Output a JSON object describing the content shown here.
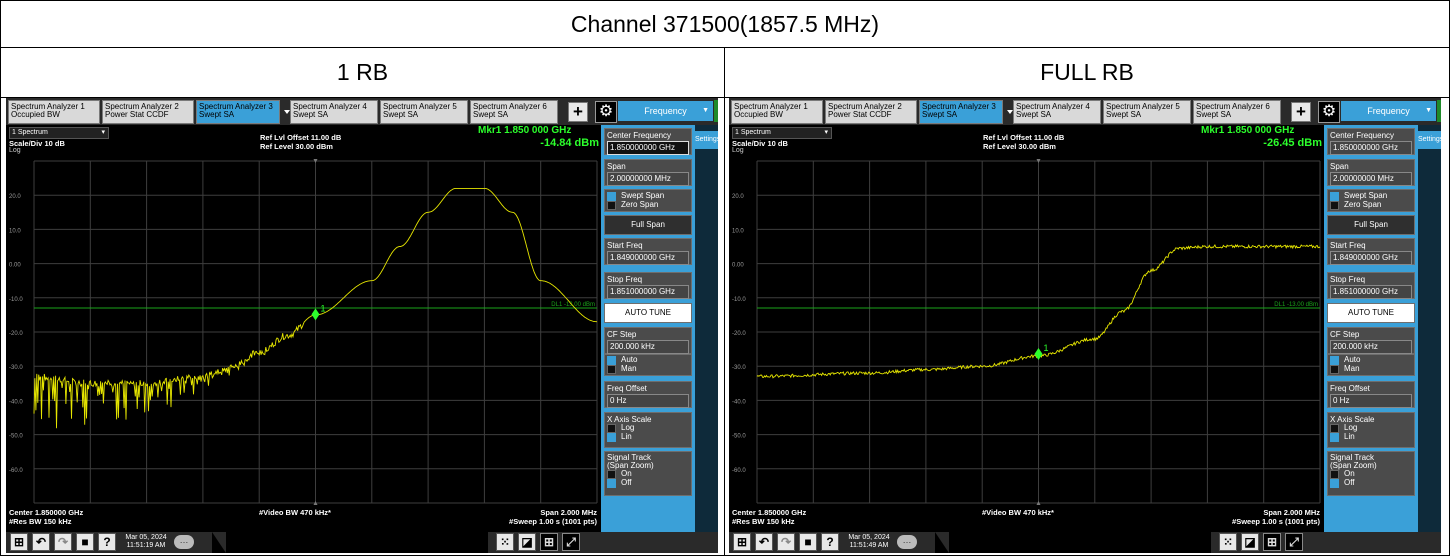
{
  "table": {
    "title": "Channel 371500(1857.5 MHz)",
    "left_header": "1 RB",
    "right_header": "FULL RB"
  },
  "ui": {
    "tabs": [
      {
        "line1": "Spectrum Analyzer 1",
        "line2": "Occupied BW"
      },
      {
        "line1": "Spectrum Analyzer 2",
        "line2": "Power Stat CCDF"
      },
      {
        "line1": "Spectrum Analyzer 3",
        "line2": "Swept SA"
      },
      {
        "line1": "Spectrum Analyzer 4",
        "line2": "Swept SA"
      },
      {
        "line1": "Spectrum Analyzer 5",
        "line2": "Swept SA"
      },
      {
        "line1": "Spectrum Analyzer 6",
        "line2": "Swept SA"
      }
    ],
    "active_tab_index": 2,
    "plus": "+",
    "gear": "⚙",
    "menu": "Frequency",
    "settings_tab": "Settings",
    "window_selector": "1 Spectrum",
    "ref_offset": "Ref Lvl Offset 11.00 dB",
    "ref_level": "Ref Level 30.00 dBm",
    "scale": "Scale/Div 10 dB",
    "log": "Log",
    "y_ticks": [
      "20.0",
      "10.0",
      "0.00",
      "-10.0",
      "-20.0",
      "-30.0",
      "-40.0",
      "-50.0",
      "-60.0"
    ],
    "display_line": "DL1 -13.00 dBm",
    "marker_label": "1",
    "footer": {
      "center": "Center 1.850000 GHz",
      "rbw": "#Res BW 150 kHz",
      "vbw": "#Video BW 470 kHz*",
      "span": "Span 2.000 MHz",
      "sweep": "#Sweep 1.00 s (1001 pts)"
    },
    "softkeys": {
      "center_freq": {
        "label": "Center Frequency",
        "value": "1.850000000 GHz"
      },
      "span": {
        "label": "Span",
        "value": "2.00000000 MHz"
      },
      "swept_span": "Swept Span",
      "zero_span": "Zero Span",
      "full_span": "Full Span",
      "start_freq": {
        "label": "Start Freq",
        "value": "1.849000000 GHz"
      },
      "stop_freq": {
        "label": "Stop Freq",
        "value": "1.851000000 GHz"
      },
      "auto_tune": "AUTO TUNE",
      "cf_step": {
        "label": "CF Step",
        "value": "200.000 kHz"
      },
      "auto": "Auto",
      "man": "Man",
      "freq_offset": {
        "label": "Freq Offset",
        "value": "0 Hz"
      },
      "x_axis_scale": "X Axis Scale",
      "log": "Log",
      "lin": "Lin",
      "signal_track": "Signal Track",
      "span_zoom": "(Span Zoom)",
      "on": "On",
      "off": "Off"
    },
    "colors": {
      "trace": "#e6e600",
      "marker": "#2cff2c",
      "display_line": "#1aa51a",
      "accent": "#3aa0d8"
    }
  },
  "panels": [
    {
      "id": "one-rb",
      "marker_freq": "Mkr1  1.850 000 GHz",
      "marker_value": "-14.84 dBm",
      "date": "Mar 05, 2024",
      "time": "11:51:19 AM"
    },
    {
      "id": "full-rb",
      "marker_freq": "Mkr1  1.850 000 GHz",
      "marker_value": "-26.45 dBm",
      "date": "Mar 05, 2024",
      "time": "11:51:49 AM"
    }
  ],
  "chart_data": [
    {
      "type": "line",
      "panel": "1 RB",
      "xlabel": "Center 1.850000 GHz / Span 2.000 MHz",
      "ylabel": "Scale/Div 10 dB",
      "xlim": [
        1.849,
        1.851
      ],
      "ylim": [
        -70,
        30
      ],
      "grid": true,
      "display_line_dbm": -13.0,
      "marker": {
        "x": 1.85,
        "y": -14.84
      },
      "series": [
        {
          "x": [
            1.849,
            1.8492,
            1.8494,
            1.8496,
            1.8497,
            1.8498,
            1.8499,
            1.85,
            1.8502,
            1.8503,
            1.8504,
            1.8505,
            1.8506,
            1.8507,
            1.8508,
            1.851
          ],
          "y": [
            -33,
            -35,
            -35,
            -33,
            -30,
            -26,
            -21,
            -15,
            -5,
            5,
            15,
            22,
            22,
            15,
            -5,
            -17
          ]
        }
      ]
    },
    {
      "type": "line",
      "panel": "FULL RB",
      "xlabel": "Center 1.850000 GHz / Span 2.000 MHz",
      "ylabel": "Scale/Div 10 dB",
      "xlim": [
        1.849,
        1.851
      ],
      "ylim": [
        -70,
        30
      ],
      "grid": true,
      "display_line_dbm": -13.0,
      "marker": {
        "x": 1.85,
        "y": -26.45
      },
      "series": [
        {
          "x": [
            1.849,
            1.8494,
            1.8496,
            1.8498,
            1.85,
            1.8502,
            1.8503,
            1.8504,
            1.8505,
            1.8506,
            1.8508,
            1.851
          ],
          "y": [
            -33,
            -32,
            -31,
            -30,
            -27,
            -22,
            -14,
            -2,
            4.5,
            5,
            5,
            5
          ]
        }
      ]
    }
  ]
}
